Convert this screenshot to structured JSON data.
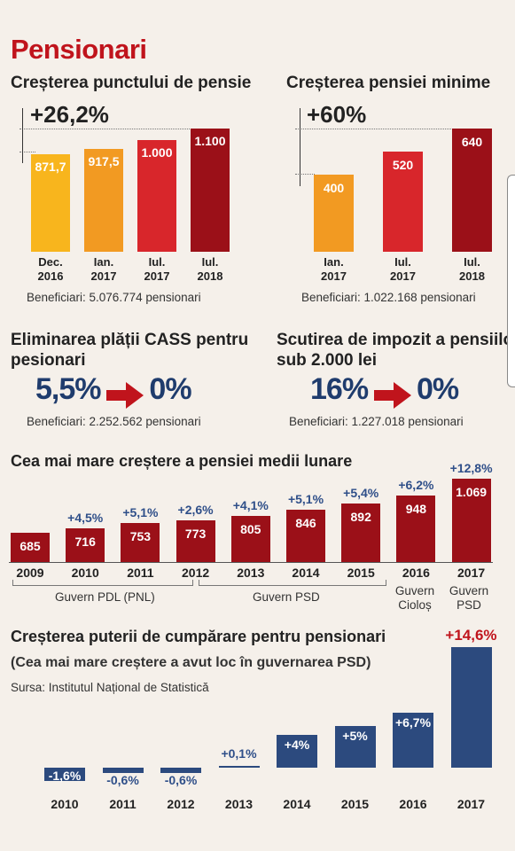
{
  "page_title": "Pensionari",
  "colors": {
    "title": "#c0141c",
    "darkred": "#9b1018",
    "red": "#d8262b",
    "orange": "#f29a22",
    "yellow": "#f8b51d",
    "navy": "#2c4a7e",
    "pct_blue": "#2f4f89"
  },
  "pension_point": {
    "title": "Creșterea punctului de pensie",
    "growth": "+26,2%",
    "beneficiaries": "Beneficiari: 5.076.774 pensionari",
    "chart_data": {
      "type": "bar",
      "categories": [
        "Dec. 2016",
        "Ian. 2017",
        "Iul. 2017",
        "Iul. 2018"
      ],
      "values": [
        871.7,
        917.5,
        1000,
        1100
      ],
      "labels": [
        "871,7",
        "917,5",
        "1.000",
        "1.100"
      ],
      "ylim": [
        0,
        1100
      ]
    }
  },
  "min_pension": {
    "title": "Creșterea pensiei minime",
    "growth": "+60%",
    "beneficiaries": "Beneficiari: 1.022.168 pensionari",
    "chart_data": {
      "type": "bar",
      "categories": [
        "Ian. 2017",
        "Iul. 2017",
        "Iul. 2018"
      ],
      "values": [
        400,
        520,
        640
      ],
      "labels": [
        "400",
        "520",
        "640"
      ],
      "ylim": [
        0,
        640
      ]
    }
  },
  "cass": {
    "title_line1": "Eliminarea plății CASS pentru",
    "title_line2": "pesionari",
    "from": "5,5%",
    "to": "0%",
    "beneficiaries": "Beneficiari: 2.252.562 pensionari"
  },
  "tax": {
    "title_line1": "Scutirea de impozit a pensiilor",
    "title_line2": "sub 2.000 lei",
    "from": "16%",
    "to": "0%",
    "beneficiaries": "Beneficiari: 1.227.018 pensionari"
  },
  "avg_pension": {
    "title": "Cea mai mare creștere a pensiei medii lunare",
    "chart_data": {
      "type": "bar",
      "categories": [
        "2009",
        "2010",
        "2011",
        "2012",
        "2013",
        "2014",
        "2015",
        "2016",
        "2017"
      ],
      "values": [
        685,
        716,
        753,
        773,
        805,
        846,
        892,
        948,
        1069
      ],
      "labels": [
        "685",
        "716",
        "753",
        "773",
        "805",
        "846",
        "892",
        "948",
        "1.069"
      ],
      "changes": [
        "",
        "+4,5%",
        "+5,1%",
        "+2,6%",
        "+4,1%",
        "+5,1%",
        "+5,4%",
        "+6,2%",
        "+12,8%"
      ],
      "ylim": [
        0,
        1069
      ]
    },
    "governments": [
      {
        "name": "Guvern PDL (PNL)"
      },
      {
        "name": "Guvern PSD"
      },
      {
        "name_line1": "Guvern",
        "name_line2": "Cioloș"
      },
      {
        "name_line1": "Guvern",
        "name_line2": "PSD"
      }
    ]
  },
  "purchasing": {
    "title": "Creșterea puterii de cumpărare pentru pensionari",
    "subtitle": "(Cea mai mare creștere a avut loc în guvernarea PSD)",
    "source": "Sursa: Institutul Național de Statistică",
    "chart_data": {
      "type": "bar",
      "categories": [
        "2010",
        "2011",
        "2012",
        "2013",
        "2014",
        "2015",
        "2016",
        "2017"
      ],
      "values": [
        -1.6,
        -0.6,
        -0.6,
        0.1,
        4,
        5,
        6.7,
        14.6
      ],
      "labels": [
        "-1,6%",
        "-0,6%",
        "-0,6%",
        "+0,1%",
        "+4%",
        "+5%",
        "+6,7%",
        "+14,6%"
      ]
    }
  }
}
